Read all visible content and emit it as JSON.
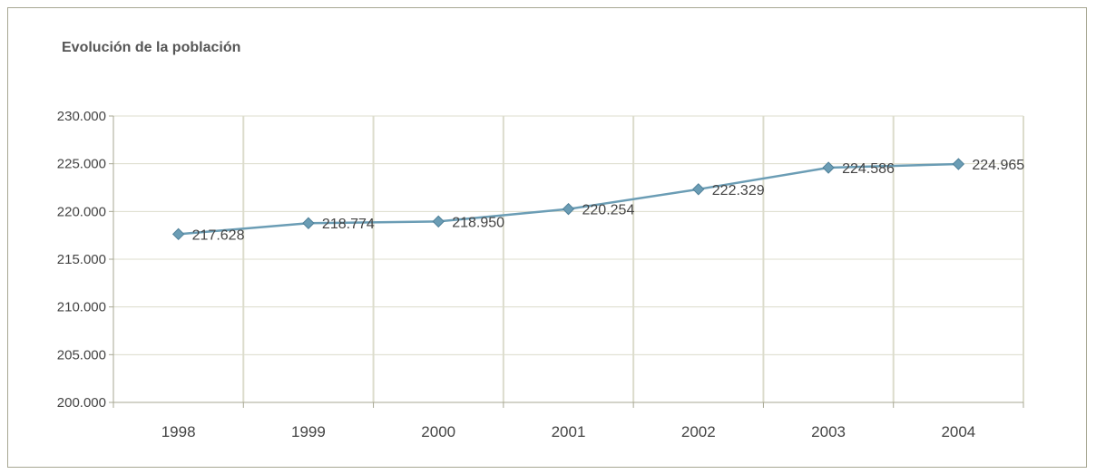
{
  "chart_data": {
    "type": "line",
    "title": "Evolución de la población",
    "xlabel": "",
    "ylabel": "",
    "categories": [
      "1998",
      "1999",
      "2000",
      "2001",
      "2002",
      "2003",
      "2004"
    ],
    "series": [
      {
        "values": [
          217628,
          218774,
          218950,
          220254,
          222329,
          224586,
          224965
        ],
        "labels": [
          "217.628",
          "218.774",
          "218.950",
          "220.254",
          "222.329",
          "224.586",
          "224.965"
        ],
        "color": "#6b9db5"
      }
    ],
    "ylim": [
      200000,
      230000
    ],
    "y_ticks": [
      200000,
      205000,
      210000,
      215000,
      220000,
      225000,
      230000
    ],
    "y_tick_labels": [
      "200.000",
      "205.000",
      "210.000",
      "215.000",
      "220.000",
      "225.000",
      "230.000"
    ],
    "grid": true,
    "legend": "none",
    "colors": {
      "grid": "#dcdccc",
      "axis": "#a7a793",
      "line": "#6b9db5"
    }
  }
}
